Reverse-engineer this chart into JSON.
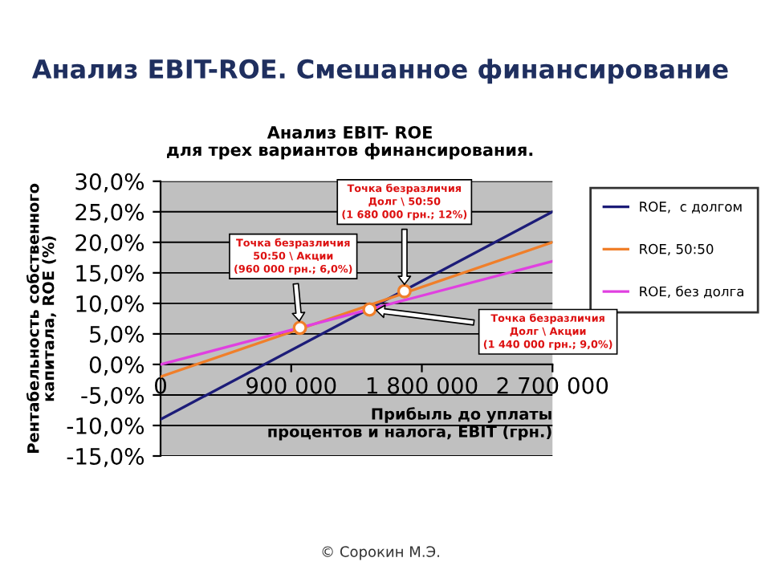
{
  "chart_data": {
    "type": "line",
    "title": "Анализ EBIT-ROE. Смешанное финансирование",
    "subtitle": "Анализ EBIT- ROE\nдля трех вариантов финансирования.",
    "xlabel": "Прибыль до уплаты\nпроцентов и налога, EBIT (грн.)",
    "ylabel": "Рентабельность собственного\nкапитала, ROE (%)",
    "x": [
      0,
      2700000
    ],
    "series": [
      {
        "name": "ROE,  с долгом",
        "color": "#1c1c78",
        "values": [
          -9.0,
          25.0
        ]
      },
      {
        "name": "ROE, 50:50",
        "color": "#f07f2a",
        "values": [
          -2.0,
          20.0
        ]
      },
      {
        "name": "ROE, без долга",
        "color": "#e040e0",
        "values": [
          0.0,
          16.9
        ]
      },
      {
        "type": "scatter",
        "marker": "circle",
        "color": "#ffffff",
        "x": [
          960000,
          1680000,
          1440000
        ],
        "values": [
          6.0,
          12.0,
          9.0
        ]
      }
    ],
    "xlim": [
      0,
      2700000
    ],
    "xticks": [
      {
        "value": 0,
        "label": "0"
      },
      {
        "value": 900000,
        "label": "900 000"
      },
      {
        "value": 1800000,
        "label": "1 800 000"
      },
      {
        "value": 2700000,
        "label": "2 700 000"
      }
    ],
    "ylim": [
      -15,
      30
    ],
    "yticks": [
      {
        "value": -15,
        "label": "-15,0%"
      },
      {
        "value": -10,
        "label": "-10,0%"
      },
      {
        "value": -5,
        "label": "-5,0%"
      },
      {
        "value": 0,
        "label": "0,0%"
      },
      {
        "value": 5,
        "label": "5,0%"
      },
      {
        "value": 10,
        "label": "10,0%"
      },
      {
        "value": 15,
        "label": "15,0%"
      },
      {
        "value": 20,
        "label": "20,0%"
      },
      {
        "value": 25,
        "label": "25,0%"
      },
      {
        "value": 30,
        "label": "30,0%"
      }
    ],
    "grid": "y",
    "legend": "right",
    "marker": "none",
    "annotations": [
      "Точка безразличия\n50:50 \\ Акции\n(960 000 грн.; 6,0%)",
      "Точка безразличия\nДолг \\ 50:50\n(1 680 000 грн.; 12%)",
      "Точка безразличия\nДолг \\ Акции\n(1 440 000 грн.; 9,0%)",
      "© Сорокин М.Э."
    ]
  }
}
